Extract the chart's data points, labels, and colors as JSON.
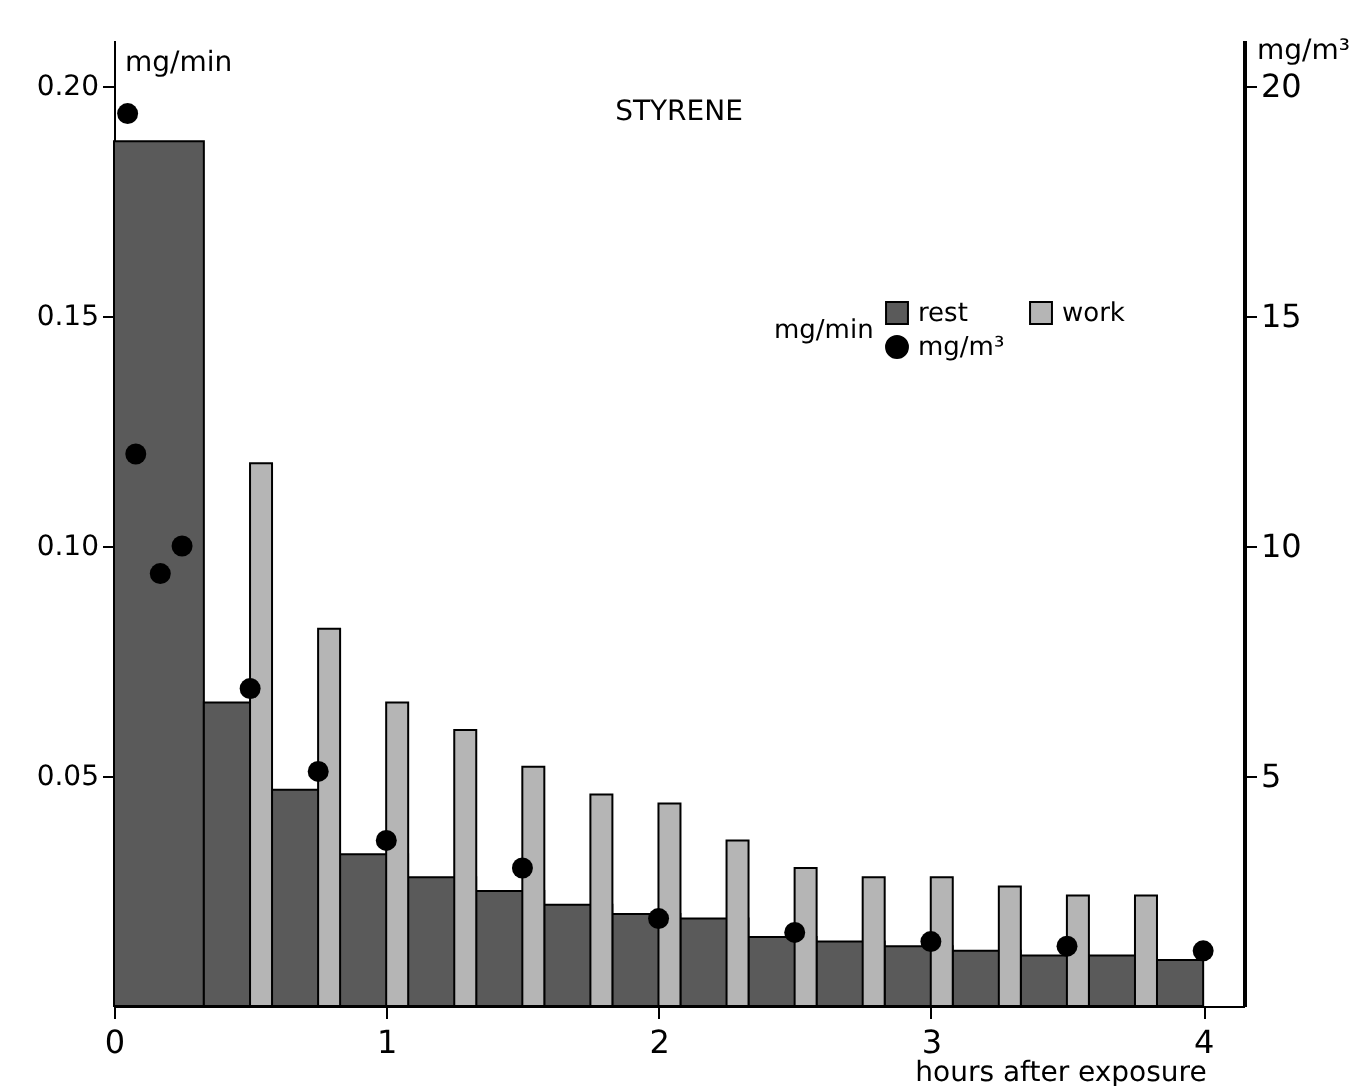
{
  "chart_data": {
    "type": "histogram",
    "title": "STYRENE",
    "xlabel": "hours after exposure",
    "ylabel": "mg/min",
    "y2label": "mg/m³",
    "legend_title": "mg/min",
    "bins": [
      0,
      0.33,
      0.58,
      0.83,
      1.08,
      1.33,
      1.58,
      1.83,
      2.08,
      2.33,
      2.58,
      2.83,
      3.08,
      3.33,
      3.58,
      3.83,
      4
    ],
    "series": [
      {
        "name": "rest",
        "color": "#5a5a5a",
        "values": [
          0.188,
          0.066,
          0.047,
          0.033,
          0.028,
          0.025,
          0.022,
          0.02,
          0.019,
          0.015,
          0.014,
          0.013,
          0.012,
          0.011,
          0.011,
          0.01
        ]
      },
      {
        "name": "work",
        "type": "bar",
        "color": "#b5b5b5",
        "x": [
          0.54,
          0.79,
          1.04,
          1.29,
          1.54,
          1.79,
          2.04,
          2.29,
          2.54,
          2.79,
          3.04,
          3.29,
          3.54,
          3.79
        ],
        "values": [
          0.118,
          0.082,
          0.066,
          0.06,
          0.052,
          0.046,
          0.044,
          0.036,
          0.03,
          0.028,
          0.028,
          0.026,
          0.024,
          0.024
        ]
      },
      {
        "name": "mg/m³",
        "type": "scatter",
        "axis": "y2",
        "color": "#000000",
        "x": [
          0.05,
          0.08,
          0.17,
          0.25,
          0.5,
          0.75,
          1,
          1.5,
          2,
          2.5,
          3,
          3.5,
          4
        ],
        "values": [
          19.4,
          12.0,
          9.4,
          10.0,
          6.9,
          5.1,
          3.6,
          3.0,
          1.9,
          1.6,
          1.4,
          1.3,
          1.2
        ]
      }
    ],
    "xlim": [
      0,
      4.15
    ],
    "xticks": [
      0,
      1,
      2,
      3,
      4
    ],
    "ylim": [
      0,
      0.21
    ],
    "yticks": [
      {
        "value": 0.05,
        "label": "0.05"
      },
      {
        "value": 0.1,
        "label": "0.10"
      },
      {
        "value": 0.15,
        "label": "0.15"
      },
      {
        "value": 0.2,
        "label": "0.20"
      }
    ],
    "y2lim": [
      0,
      21
    ],
    "y2ticks": [
      5,
      10,
      15,
      20
    ],
    "grid": false,
    "legend": "top right",
    "marker": "circle"
  }
}
